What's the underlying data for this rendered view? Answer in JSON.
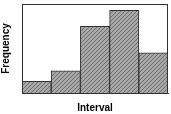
{
  "chart_data": {
    "type": "histogram",
    "xlabel": "Interval",
    "ylabel": "Frequency",
    "bins": [
      0,
      1,
      2,
      3,
      4,
      5
    ],
    "values": [
      1.3,
      2.5,
      7.5,
      9.3,
      4.5
    ],
    "xlim": [
      0,
      5
    ],
    "ylim": [
      0,
      10
    ],
    "color": "#a8a8a8",
    "grid": false,
    "tick_labels": false,
    "legend": "none"
  }
}
